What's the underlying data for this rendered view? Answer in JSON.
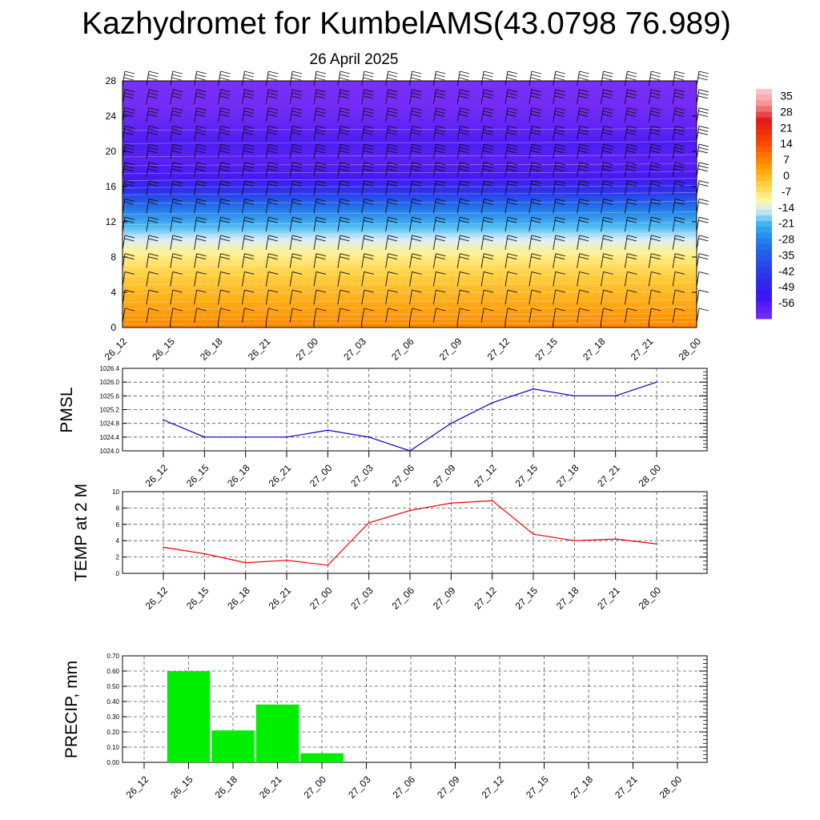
{
  "page": {
    "title": "Kazhydromet for KumbelAMS(43.0798 76.989)",
    "subtitle": "26 April 2025"
  },
  "chart_data": [
    {
      "type": "heatmap",
      "name": "cross-section",
      "xlabel": "",
      "ylabel": "",
      "x_ticks": [
        "26_12",
        "26_15",
        "26_18",
        "26_21",
        "27_00",
        "27_03",
        "27_06",
        "27_09",
        "27_12",
        "27_15",
        "27_18",
        "27_21",
        "28_00"
      ],
      "y_ticks": [
        0,
        4,
        8,
        12,
        16,
        20,
        24,
        28
      ],
      "ylim": [
        0,
        28
      ],
      "wind_barbs": true,
      "colorbar": {
        "labels": [
          35,
          28,
          21,
          14,
          7,
          0,
          -7,
          -14,
          -21,
          -28,
          -35,
          -42,
          -49,
          -56
        ],
        "range": [
          -63,
          38
        ],
        "stops": [
          {
            "v": 38,
            "c": "#fcd0d0"
          },
          {
            "v": 31,
            "c": "#f29090"
          },
          {
            "v": 24,
            "c": "#e21818"
          },
          {
            "v": 14,
            "c": "#fa4a00"
          },
          {
            "v": 4,
            "c": "#ff9800"
          },
          {
            "v": -4,
            "c": "#ffd040"
          },
          {
            "v": -11,
            "c": "#fff8a0"
          },
          {
            "v": -15,
            "c": "#d8eef8"
          },
          {
            "v": -22,
            "c": "#30b0f0"
          },
          {
            "v": -31,
            "c": "#2070e8"
          },
          {
            "v": -43,
            "c": "#2a38e8"
          },
          {
            "v": -53,
            "c": "#3a14f0"
          },
          {
            "v": -63,
            "c": "#7a2ef8"
          }
        ]
      },
      "profile": [
        {
          "h": 0,
          "t": 6
        },
        {
          "h": 3,
          "t": 1
        },
        {
          "h": 6,
          "t": -4
        },
        {
          "h": 8.5,
          "t": -10
        },
        {
          "h": 10,
          "t": -15
        },
        {
          "h": 11.5,
          "t": -21
        },
        {
          "h": 13.5,
          "t": -30
        },
        {
          "h": 15.5,
          "t": -45
        },
        {
          "h": 17,
          "t": -55
        },
        {
          "h": 19,
          "t": -58
        },
        {
          "h": 21,
          "t": -56
        },
        {
          "h": 22,
          "t": -58
        },
        {
          "h": 25,
          "t": -62
        },
        {
          "h": 28,
          "t": -63
        }
      ]
    },
    {
      "type": "line",
      "name": "pmsl",
      "ylabel": "PMSL",
      "x": [
        "26_12",
        "26_15",
        "26_18",
        "26_21",
        "27_00",
        "27_03",
        "27_06",
        "27_09",
        "27_12",
        "27_15",
        "27_18",
        "27_21",
        "28_00"
      ],
      "values": [
        1024.9,
        1024.4,
        1024.4,
        1024.4,
        1024.6,
        1024.4,
        1024.0,
        1024.8,
        1025.4,
        1025.8,
        1025.6,
        1025.6,
        1026.0
      ],
      "y_ticks": [
        "1024.0",
        "1024.4",
        "1024.8",
        "1025.2",
        "1025.6",
        "1026.0",
        "1026.4"
      ],
      "ylim": [
        1024.0,
        1026.4
      ],
      "color": "#0000cc",
      "grid": true
    },
    {
      "type": "line",
      "name": "temp",
      "ylabel": "TEMP at 2 M",
      "x": [
        "26_12",
        "26_15",
        "26_18",
        "26_21",
        "27_00",
        "27_03",
        "27_06",
        "27_09",
        "27_12",
        "27_15",
        "27_18",
        "27_21",
        "28_00"
      ],
      "values": [
        3.2,
        2.4,
        1.3,
        1.6,
        1.0,
        6.2,
        7.7,
        8.6,
        8.9,
        4.8,
        4.0,
        4.2,
        3.6
      ],
      "y_ticks": [
        "0",
        "2",
        "4",
        "6",
        "8",
        "10"
      ],
      "ylim": [
        0,
        10
      ],
      "color": "#ee0000",
      "grid": true
    },
    {
      "type": "bar",
      "name": "precip",
      "ylabel": "PRECIP, mm",
      "categories": [
        "26_12",
        "26_15",
        "26_18",
        "26_21",
        "27_00",
        "27_03",
        "27_06",
        "27_09",
        "27_12",
        "27_15",
        "27_18",
        "27_21",
        "28_00"
      ],
      "values": [
        0,
        0.6,
        0.21,
        0.38,
        0.06,
        0,
        0,
        0,
        0,
        0,
        0,
        0,
        0
      ],
      "y_ticks": [
        "0.00",
        "0.10",
        "0.20",
        "0.30",
        "0.40",
        "0.50",
        "0.60",
        "0.70"
      ],
      "ylim": [
        0,
        0.7
      ],
      "color": "#00ee00",
      "grid": true
    }
  ]
}
